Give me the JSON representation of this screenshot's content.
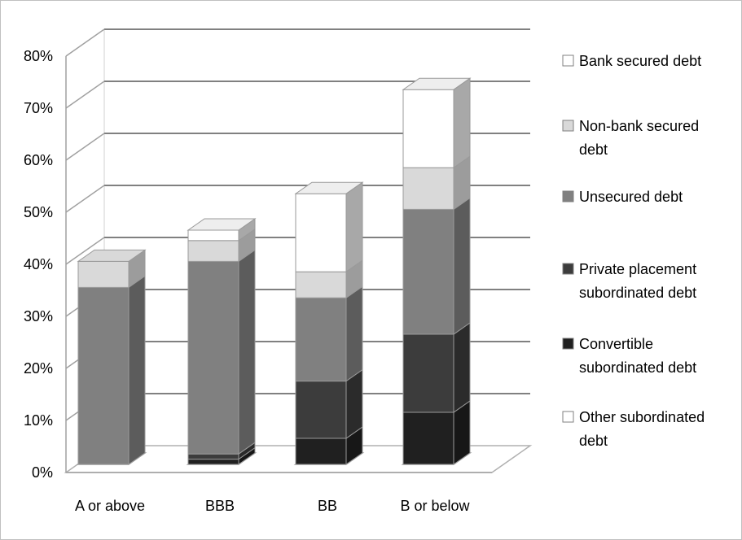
{
  "chart_data": {
    "type": "bar",
    "stacked": true,
    "three_d": true,
    "title": "",
    "xlabel": "",
    "ylabel": "",
    "ylim": [
      0,
      0.8
    ],
    "yticks": [
      "0%",
      "10%",
      "20%",
      "30%",
      "40%",
      "50%",
      "60%",
      "70%",
      "80%"
    ],
    "grid": true,
    "legend_position": "right",
    "categories": [
      "A or above",
      "BBB",
      "BB",
      "B or below"
    ],
    "series": [
      {
        "name": "Other subordinated debt",
        "color": "#ffffff",
        "values": [
          0.0,
          0.0,
          0.0,
          0.0
        ]
      },
      {
        "name": "Convertible subordinated debt",
        "color": "#202020",
        "values": [
          0.0,
          0.01,
          0.05,
          0.1
        ]
      },
      {
        "name": "Private placement subordinated debt",
        "color": "#3c3c3c",
        "values": [
          0.0,
          0.01,
          0.11,
          0.15
        ]
      },
      {
        "name": "Unsecured debt",
        "color": "#808080",
        "values": [
          0.34,
          0.37,
          0.16,
          0.24
        ]
      },
      {
        "name": "Non-bank secured debt",
        "color": "#d9d9d9",
        "values": [
          0.05,
          0.04,
          0.05,
          0.08
        ]
      },
      {
        "name": "Bank secured debt",
        "color": "#ffffff",
        "values": [
          0.0,
          0.02,
          0.15,
          0.15
        ]
      }
    ],
    "legend": [
      {
        "lines": [
          "Bank secured debt"
        ],
        "color": "#ffffff"
      },
      {
        "lines": [
          "Non-bank secured",
          "debt"
        ],
        "color": "#d9d9d9"
      },
      {
        "lines": [
          "Unsecured debt"
        ],
        "color": "#808080"
      },
      {
        "lines": [
          "Private placement",
          "subordinated debt"
        ],
        "color": "#3c3c3c"
      },
      {
        "lines": [
          "Convertible",
          "subordinated debt"
        ],
        "color": "#202020"
      },
      {
        "lines": [
          "Other subordinated",
          "debt"
        ],
        "color": "#ffffff"
      }
    ]
  }
}
